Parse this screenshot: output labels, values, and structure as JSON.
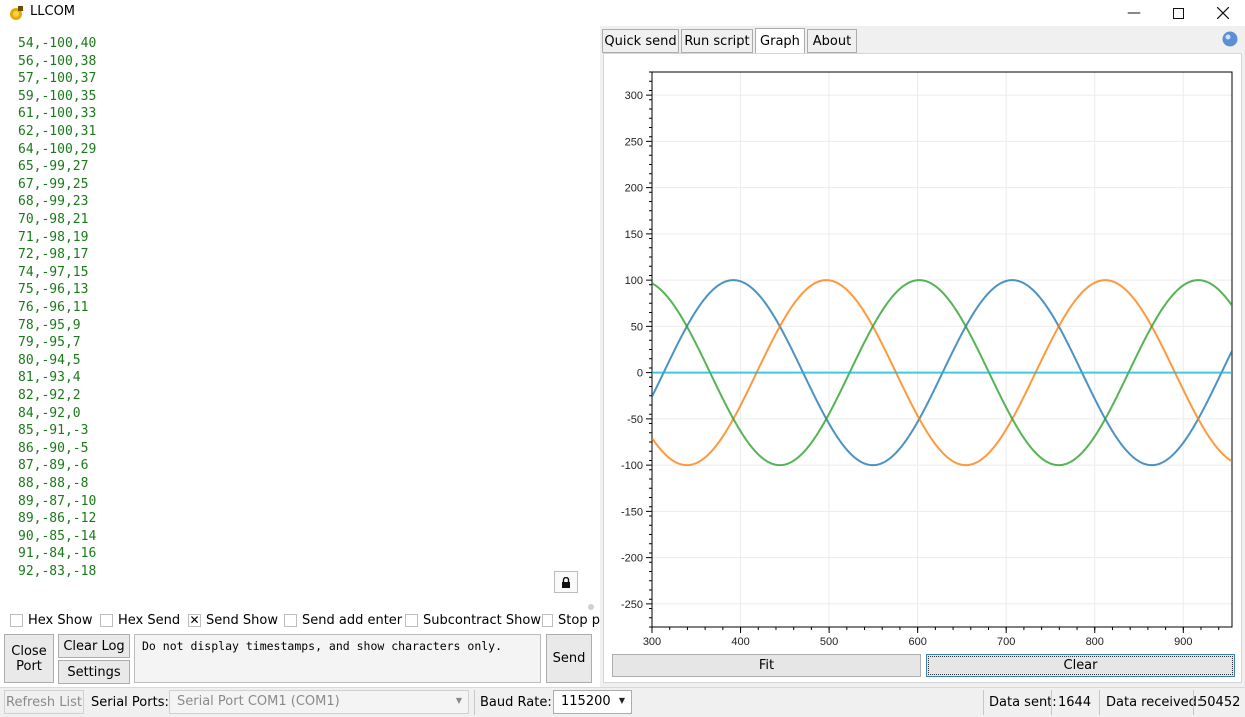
{
  "window": {
    "title": "LLCOM"
  },
  "log_lines": [
    "54,-100,40",
    "56,-100,38",
    "57,-100,37",
    "59,-100,35",
    "61,-100,33",
    "62,-100,31",
    "64,-100,29",
    "65,-99,27",
    "67,-99,25",
    "68,-99,23",
    "70,-98,21",
    "71,-98,19",
    "72,-98,17",
    "74,-97,15",
    "75,-96,13",
    "76,-96,11",
    "78,-95,9",
    "79,-95,7",
    "80,-94,5",
    "81,-93,4",
    "82,-92,2",
    "84,-92,0",
    "85,-91,-3",
    "86,-90,-5",
    "87,-89,-6",
    "88,-88,-8",
    "89,-87,-10",
    "89,-86,-12",
    "90,-85,-14",
    "91,-84,-16",
    "92,-83,-18"
  ],
  "options": {
    "hex_show": "Hex Show",
    "hex_send": "Hex Send",
    "send_show": "Send Show",
    "send_show_checked": true,
    "send_add_enter": "Send add enter",
    "subcontract_show": "Subcontract Show",
    "stop": "Stop p"
  },
  "buttons": {
    "close_port_line1": "Close",
    "close_port_line2": "Port",
    "clear_log": "Clear Log",
    "settings": "Settings",
    "send": "Send"
  },
  "send_box": {
    "value": "Do not display timestamps, and show characters only."
  },
  "tabs": [
    "Quick send",
    "Run script",
    "Graph",
    "About"
  ],
  "active_tab": "Graph",
  "graph_buttons": {
    "fit": "Fit",
    "clear": "Clear"
  },
  "statusbar": {
    "refresh_list": "Refresh List",
    "serial_ports_label": "Serial Ports:",
    "serial_port_value": "Serial Port COM1 (COM1)",
    "baud_rate_label": "Baud Rate:",
    "baud_rate_value": "115200",
    "data_sent_label": "Data sent:",
    "data_sent_value": "1644",
    "data_received_label": "Data received:",
    "data_received_value": "50452"
  },
  "chart_data": {
    "type": "line",
    "xlim": [
      300,
      955
    ],
    "ylim": [
      -275,
      325
    ],
    "x_ticks": [
      300,
      400,
      500,
      600,
      700,
      800,
      900
    ],
    "y_ticks": [
      300,
      250,
      200,
      150,
      100,
      50,
      0,
      -50,
      -100,
      -150,
      -200,
      -250
    ],
    "grid": true,
    "series": [
      {
        "color": "#1f77b4",
        "period": 315,
        "amplitude": 100,
        "phase_deg": -15,
        "x_start": 300,
        "x_end": 955
      },
      {
        "color": "#ff7f0e",
        "period": 315,
        "amplitude": 100,
        "phase_deg": 225,
        "x_start": 300,
        "x_end": 955
      },
      {
        "color": "#2ca02c",
        "period": 315,
        "amplitude": 100,
        "phase_deg": 105,
        "x_start": 300,
        "x_end": 955
      },
      {
        "color": "#17becf",
        "constant": 0,
        "x_start": 300,
        "x_end": 955
      }
    ]
  },
  "colors": {
    "log_text": "#1a7a1a",
    "accent": "#3c7fb1"
  }
}
